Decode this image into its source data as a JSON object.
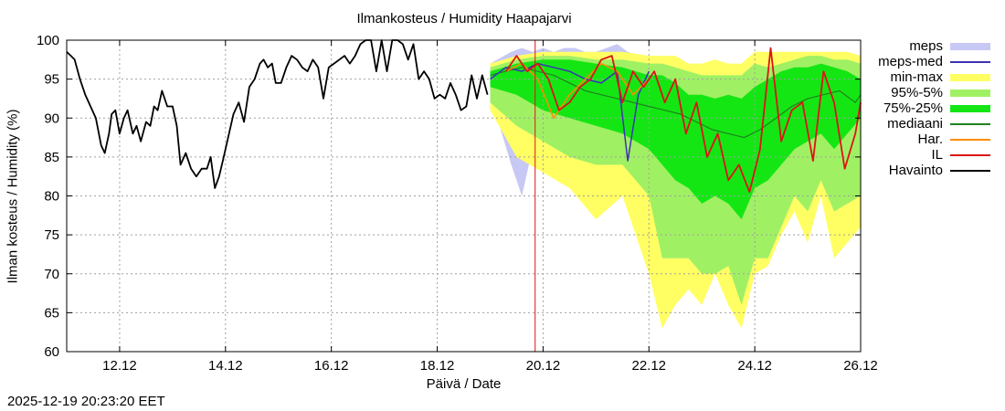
{
  "chart_data": {
    "type": "line",
    "title": "Ilmankosteus / Humidity  Haapajarvi",
    "xlabel": "Päivä / Date",
    "ylabel": "Ilman kosteus / Humidity (%)",
    "timestamp": "2025-12-19 20:23:20 EET",
    "xlim_days": [
      0,
      15
    ],
    "ylim": [
      60,
      100
    ],
    "yticks": [
      "60",
      "65",
      "70",
      "75",
      "80",
      "85",
      "90",
      "95",
      "100"
    ],
    "xticks": [
      {
        "label": "12.12",
        "day": 1
      },
      {
        "label": "14.12",
        "day": 3
      },
      {
        "label": "16.12",
        "day": 5
      },
      {
        "label": "18.12",
        "day": 7
      },
      {
        "label": "20.12",
        "day": 9
      },
      {
        "label": "22.12",
        "day": 11
      },
      {
        "label": "24.12",
        "day": 13
      },
      {
        "label": "26.12",
        "day": 15
      }
    ],
    "grid": true,
    "now_marker_day": 8.85,
    "legend": [
      {
        "label": "meps",
        "color": "#c8c8f5",
        "kind": "band"
      },
      {
        "label": "meps-med",
        "color": "#3c32b4",
        "kind": "line"
      },
      {
        "label": "min-max",
        "color": "#ffff64",
        "kind": "band"
      },
      {
        "label": "95%-5%",
        "color": "#a0f064",
        "kind": "band"
      },
      {
        "label": "75%-25%",
        "color": "#14e614",
        "kind": "band"
      },
      {
        "label": "mediaani",
        "color": "#1e821e",
        "kind": "line"
      },
      {
        "label": "Har.",
        "color": "#ff8c00",
        "kind": "line"
      },
      {
        "label": "IL",
        "color": "#dc1414",
        "kind": "line"
      },
      {
        "label": "Havainto",
        "color": "#000000",
        "kind": "line"
      }
    ],
    "series": {
      "observed": {
        "name": "Havainto",
        "x": [
          0,
          0.08,
          0.15,
          0.25,
          0.35,
          0.45,
          0.55,
          0.65,
          0.72,
          0.8,
          0.85,
          0.92,
          1.0,
          1.08,
          1.15,
          1.25,
          1.32,
          1.4,
          1.5,
          1.58,
          1.65,
          1.72,
          1.8,
          1.9,
          2.0,
          2.08,
          2.15,
          2.25,
          2.35,
          2.45,
          2.55,
          2.65,
          2.72,
          2.8,
          2.88,
          2.95,
          3.05,
          3.15,
          3.25,
          3.35,
          3.45,
          3.55,
          3.65,
          3.72,
          3.8,
          3.88,
          3.95,
          4.05,
          4.15,
          4.25,
          4.35,
          4.45,
          4.55,
          4.65,
          4.75,
          4.85,
          4.95,
          5.05,
          5.15,
          5.25,
          5.35,
          5.45,
          5.55,
          5.65,
          5.75,
          5.85,
          5.95,
          6.05,
          6.15,
          6.25,
          6.35,
          6.45,
          6.55,
          6.65,
          6.75,
          6.85,
          6.95,
          7.05,
          7.15,
          7.25,
          7.35,
          7.45,
          7.55,
          7.65,
          7.75,
          7.85,
          7.95
        ],
        "y": [
          98.5,
          98,
          97.5,
          95,
          93,
          91.5,
          90,
          86.5,
          85.5,
          88,
          90.5,
          91,
          88,
          90,
          91,
          88,
          89,
          87,
          89.5,
          89,
          91.5,
          91,
          93.5,
          91.5,
          91.5,
          89,
          84,
          85.5,
          83.5,
          82.5,
          83.5,
          83.5,
          85,
          81,
          82.5,
          84.5,
          87.5,
          90.5,
          92,
          89.5,
          94,
          95,
          97,
          97.5,
          96.5,
          97,
          94.5,
          94.5,
          96.5,
          98,
          97.5,
          96.5,
          96,
          97.5,
          96.5,
          92.5,
          96.5,
          97,
          97.5,
          98,
          97,
          98,
          99.5,
          100,
          100,
          96,
          100,
          96,
          100,
          100,
          99.5,
          97.5,
          99.5,
          95,
          96,
          95,
          92.5,
          93,
          92.5,
          94.5,
          93,
          91,
          91.5,
          95.5,
          92.5,
          95.5,
          93
        ]
      },
      "ens_median": {
        "name": "mediaani",
        "x": [
          8.0,
          8.3,
          8.6,
          8.9,
          9.2,
          9.5,
          9.8,
          10.1,
          10.4,
          10.7,
          11.0,
          11.3,
          11.6,
          11.9,
          12.2,
          12.5,
          12.8,
          13.1,
          13.4,
          13.7,
          14.0,
          14.3,
          14.6,
          14.9,
          15.0
        ],
        "y": [
          95.5,
          96,
          96.5,
          96,
          95.5,
          94.5,
          93.5,
          93,
          92.5,
          92,
          91.5,
          91,
          90.5,
          89.5,
          88.5,
          88,
          87.5,
          88.5,
          90,
          91.5,
          92.5,
          93,
          93.5,
          92,
          93
        ]
      },
      "il": {
        "name": "IL",
        "x": [
          8.3,
          8.5,
          8.7,
          8.9,
          9.1,
          9.3,
          9.5,
          9.7,
          9.9,
          10.1,
          10.3,
          10.5,
          10.7,
          10.9,
          11.1,
          11.3,
          11.5,
          11.7,
          11.9,
          12.1,
          12.3,
          12.5,
          12.7,
          12.9,
          13.1,
          13.3,
          13.5,
          13.7,
          13.9,
          14.1,
          14.3,
          14.5,
          14.7,
          14.9,
          15.0
        ],
        "y": [
          96,
          98,
          96,
          97,
          95,
          91,
          92,
          94,
          95,
          97.5,
          98,
          92,
          96,
          94,
          96,
          92,
          95,
          88,
          92,
          85,
          88,
          82,
          84,
          80.5,
          86,
          99,
          87,
          91,
          92,
          84.5,
          96,
          92,
          83.5,
          88,
          92
        ]
      },
      "har": {
        "name": "Har.",
        "x": [
          8.3,
          8.6,
          8.9,
          9.2,
          9.5,
          9.8,
          10.1,
          10.4,
          10.7,
          11.0
        ],
        "y": [
          96,
          97,
          95,
          90,
          93,
          95,
          97,
          96,
          93,
          95
        ]
      },
      "meps_med": {
        "name": "meps-med",
        "x": [
          8.0,
          8.3,
          8.6,
          8.9,
          9.2,
          9.5,
          9.8,
          10.1,
          10.4,
          10.6,
          10.8,
          11.0
        ],
        "y": [
          95,
          96.5,
          96,
          97,
          96.5,
          96,
          95,
          94.5,
          96,
          84.5,
          93,
          96
        ]
      },
      "band_x": [
        8.0,
        8.5,
        9.0,
        9.5,
        10.0,
        10.5,
        11.0,
        11.25,
        11.5,
        11.75,
        12.0,
        12.25,
        12.5,
        12.75,
        13.0,
        13.25,
        13.5,
        13.75,
        14.0,
        14.25,
        14.5,
        14.75,
        15.0
      ],
      "minmax": {
        "name": "min-max",
        "high": [
          97,
          98,
          98.5,
          98.5,
          98.5,
          98.5,
          98,
          98,
          98,
          97,
          97,
          97.5,
          97,
          97,
          98.5,
          98.5,
          98.5,
          98.5,
          98.5,
          98.5,
          98.5,
          98.5,
          98
        ],
        "low": [
          91,
          85,
          83,
          81,
          77,
          80,
          70,
          63,
          66,
          68,
          66,
          70,
          66,
          63,
          70,
          71,
          75,
          78,
          74,
          80,
          72,
          74,
          76
        ]
      },
      "p95_5": {
        "name": "95%-5%",
        "high": [
          96.5,
          97.5,
          98,
          98,
          97.5,
          97.5,
          97,
          97,
          96.5,
          96,
          95.5,
          95.5,
          95.5,
          95.5,
          97,
          96.5,
          97,
          97.5,
          98,
          98,
          97.5,
          97.5,
          97
        ],
        "low": [
          92,
          89,
          87,
          85,
          84,
          84,
          80,
          72,
          72,
          72,
          70,
          70,
          71,
          66,
          72,
          72,
          76,
          80,
          78,
          82,
          78,
          79,
          80
        ]
      },
      "p75_25": {
        "name": "75%-25%",
        "high": [
          96,
          97,
          97.5,
          97.5,
          97,
          96.5,
          95.5,
          95.5,
          94.5,
          93,
          93,
          92.5,
          93,
          92.5,
          94,
          95,
          96,
          96.5,
          96.5,
          97,
          96.5,
          96,
          95
        ],
        "low": [
          94,
          93,
          91,
          90,
          89,
          88,
          86,
          84,
          82,
          81,
          79,
          80,
          79,
          77,
          81,
          82,
          84,
          86,
          87,
          88,
          86,
          88,
          90
        ]
      },
      "meps_band": {
        "name": "meps",
        "x": [
          8.0,
          8.4,
          8.6,
          8.8,
          9.0,
          9.2,
          9.4,
          9.6,
          9.8,
          10.0,
          10.2,
          10.4,
          10.6,
          10.8,
          11.0
        ],
        "high": [
          97,
          98.5,
          99,
          98.5,
          99,
          98.5,
          99,
          99,
          98.5,
          98.5,
          99,
          99.5,
          98.5,
          98,
          98
        ],
        "low": [
          93,
          84,
          80,
          86,
          83,
          89,
          87,
          88,
          91,
          86,
          80,
          92,
          84,
          80,
          93
        ]
      }
    }
  }
}
